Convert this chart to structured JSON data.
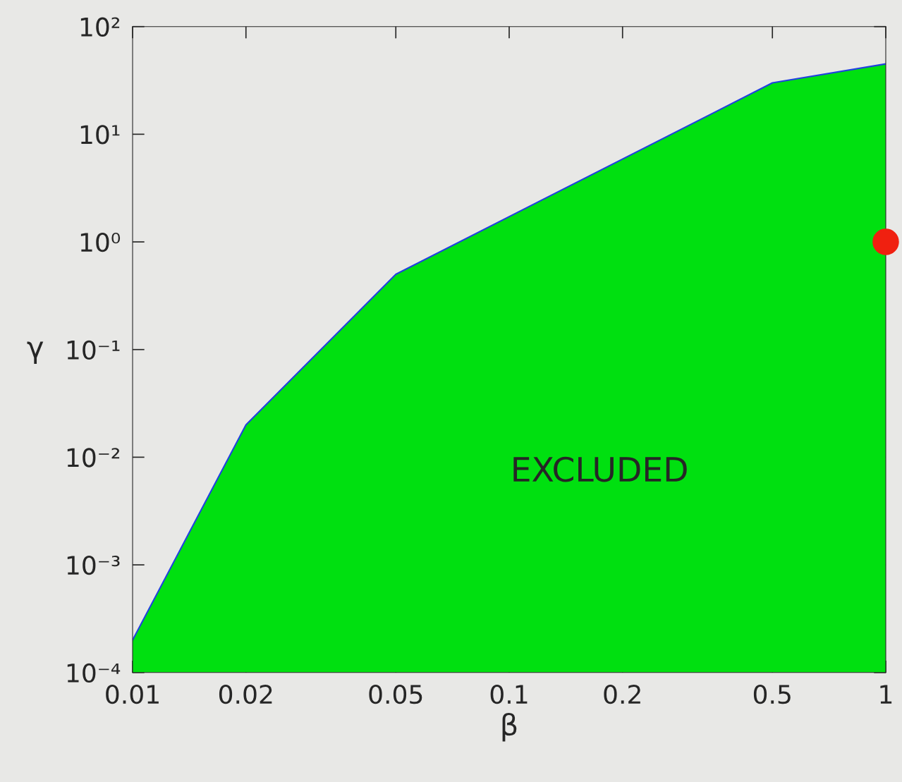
{
  "chart_data": {
    "type": "area",
    "xlabel": "β",
    "ylabel": "γ",
    "log": "xy",
    "grid": false,
    "xlim": [
      0.01,
      1
    ],
    "ylim": [
      0.0001,
      100
    ],
    "xticks": [
      0.01,
      0.02,
      0.05,
      0.1,
      0.2,
      0.5,
      1
    ],
    "yticks": [
      {
        "value": 0.0001,
        "label": "10⁻⁴"
      },
      {
        "value": 0.001,
        "label": "10⁻³"
      },
      {
        "value": 0.01,
        "label": "10⁻²"
      },
      {
        "value": 0.1,
        "label": "10⁻¹"
      },
      {
        "value": 1,
        "label": "10⁰"
      },
      {
        "value": 10,
        "label": "10¹"
      },
      {
        "value": 100,
        "label": "10²"
      }
    ],
    "series": [
      {
        "type": "area",
        "color": "#00e010",
        "x": [
          0.01,
          0.02,
          0.05,
          0.5,
          1
        ],
        "values": [
          0.0002,
          0.02,
          0.5,
          30,
          45
        ]
      },
      {
        "type": "line",
        "color": "#2040e0",
        "x": [
          0.01,
          0.02,
          0.05,
          0.5,
          1
        ],
        "values": [
          0.0002,
          0.02,
          0.5,
          30,
          45
        ]
      },
      {
        "type": "scatter",
        "color": "#f02010",
        "marker": "circle",
        "x": [
          1
        ],
        "values": [
          1
        ]
      }
    ],
    "annotations": [
      "EXCLUDED"
    ]
  }
}
